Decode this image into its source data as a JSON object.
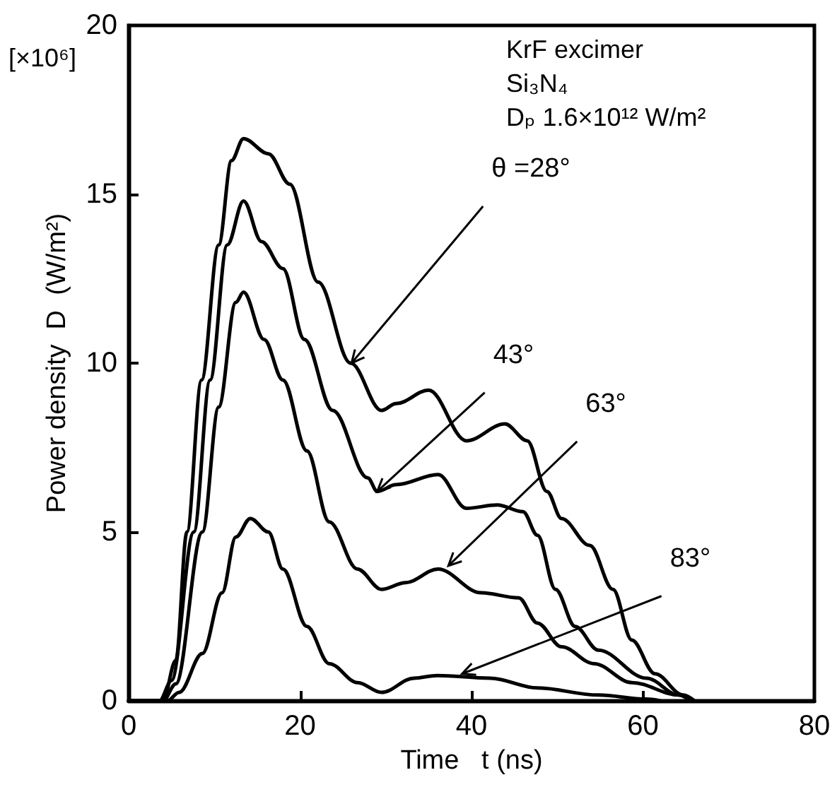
{
  "chart_data": {
    "type": "line",
    "xlabel": "Time   t (ns)",
    "ylabel": "Power density  D  (W/m²)",
    "xlim": [
      0,
      80
    ],
    "xticks": [
      0,
      20,
      40,
      60,
      80
    ],
    "ylim": [
      0,
      20
    ],
    "yticks": [
      0,
      5,
      10,
      15,
      20
    ],
    "grid": false,
    "marker": "none",
    "line_style": "solid",
    "series": [
      {
        "color": "#000000",
        "x": [
          0,
          4,
          5.5,
          6.8,
          8.5,
          10.5,
          12,
          13.4,
          16.3,
          18.8,
          22.1,
          25.9,
          29.5,
          31.2,
          35,
          39.4,
          43.9,
          46.5,
          48.8,
          50.5,
          53.8,
          56.5,
          58.7,
          61.4,
          64.7,
          66
        ],
        "values": [
          0,
          0,
          1.2,
          5,
          9.5,
          13.5,
          16,
          16.65,
          16.2,
          15.3,
          12.4,
          10,
          8.6,
          8.8,
          9.2,
          7.7,
          8.2,
          7.7,
          6.2,
          5.4,
          4.6,
          3.3,
          1.8,
          0.8,
          0.17,
          0
        ]
      },
      {
        "color": "#000000",
        "x": [
          0,
          3.6,
          5,
          7.6,
          9.5,
          11.5,
          13.4,
          15.5,
          18,
          20.5,
          23.8,
          27.9,
          29,
          31.2,
          36.1,
          39.4,
          43,
          46,
          47.7,
          49.8,
          52.1,
          54.8,
          60.4,
          64.2,
          66
        ],
        "values": [
          0,
          0,
          0.6,
          5,
          9.5,
          13.5,
          14.8,
          13.6,
          12.8,
          10.7,
          8.6,
          6.6,
          6.2,
          6.4,
          6.7,
          5.7,
          5.8,
          5.6,
          4.9,
          3.3,
          2.2,
          1.5,
          0.67,
          0.17,
          0
        ]
      },
      {
        "color": "#000000",
        "x": [
          0,
          4,
          5.5,
          8.6,
          10.5,
          12.5,
          13.4,
          15.8,
          18,
          20.8,
          23.4,
          26.7,
          29.5,
          32.3,
          36.1,
          41.1,
          45.5,
          47.7,
          50.5,
          54.3,
          58.7,
          64.2,
          65.5
        ],
        "values": [
          0,
          0,
          0.5,
          5,
          8.7,
          11.8,
          12.1,
          10.7,
          9.5,
          7.4,
          5.3,
          3.9,
          3.3,
          3.5,
          3.9,
          3.2,
          3.05,
          2.3,
          1.6,
          1.1,
          0.54,
          0.17,
          0
        ]
      },
      {
        "color": "#000000",
        "x": [
          0,
          4.5,
          5.9,
          8.6,
          10.9,
          12.5,
          14.2,
          16.3,
          18,
          20.8,
          23.4,
          26.7,
          29.5,
          33.3,
          36,
          42.2,
          47.7,
          54.8,
          60.4,
          62
        ],
        "values": [
          0,
          0,
          0.25,
          1.4,
          3.2,
          4.85,
          5.4,
          5,
          3.9,
          2.2,
          1.1,
          0.54,
          0.25,
          0.67,
          0.75,
          0.67,
          0.38,
          0.17,
          0.05,
          0
        ]
      }
    ],
    "annotations": [
      {
        "text": "θ =28°",
        "x": 26,
        "y": 10
      },
      {
        "text": "43°",
        "x": 29,
        "y": 6.2
      },
      {
        "text": "63°",
        "x": 37.3,
        "y": 4
      },
      {
        "text": "83°",
        "x": 38.9,
        "y": 0.8
      },
      "KrF excimer",
      "Si₃N₄",
      "Dₚ 1.6×10¹² W/m²",
      "[×10⁶]"
    ]
  }
}
